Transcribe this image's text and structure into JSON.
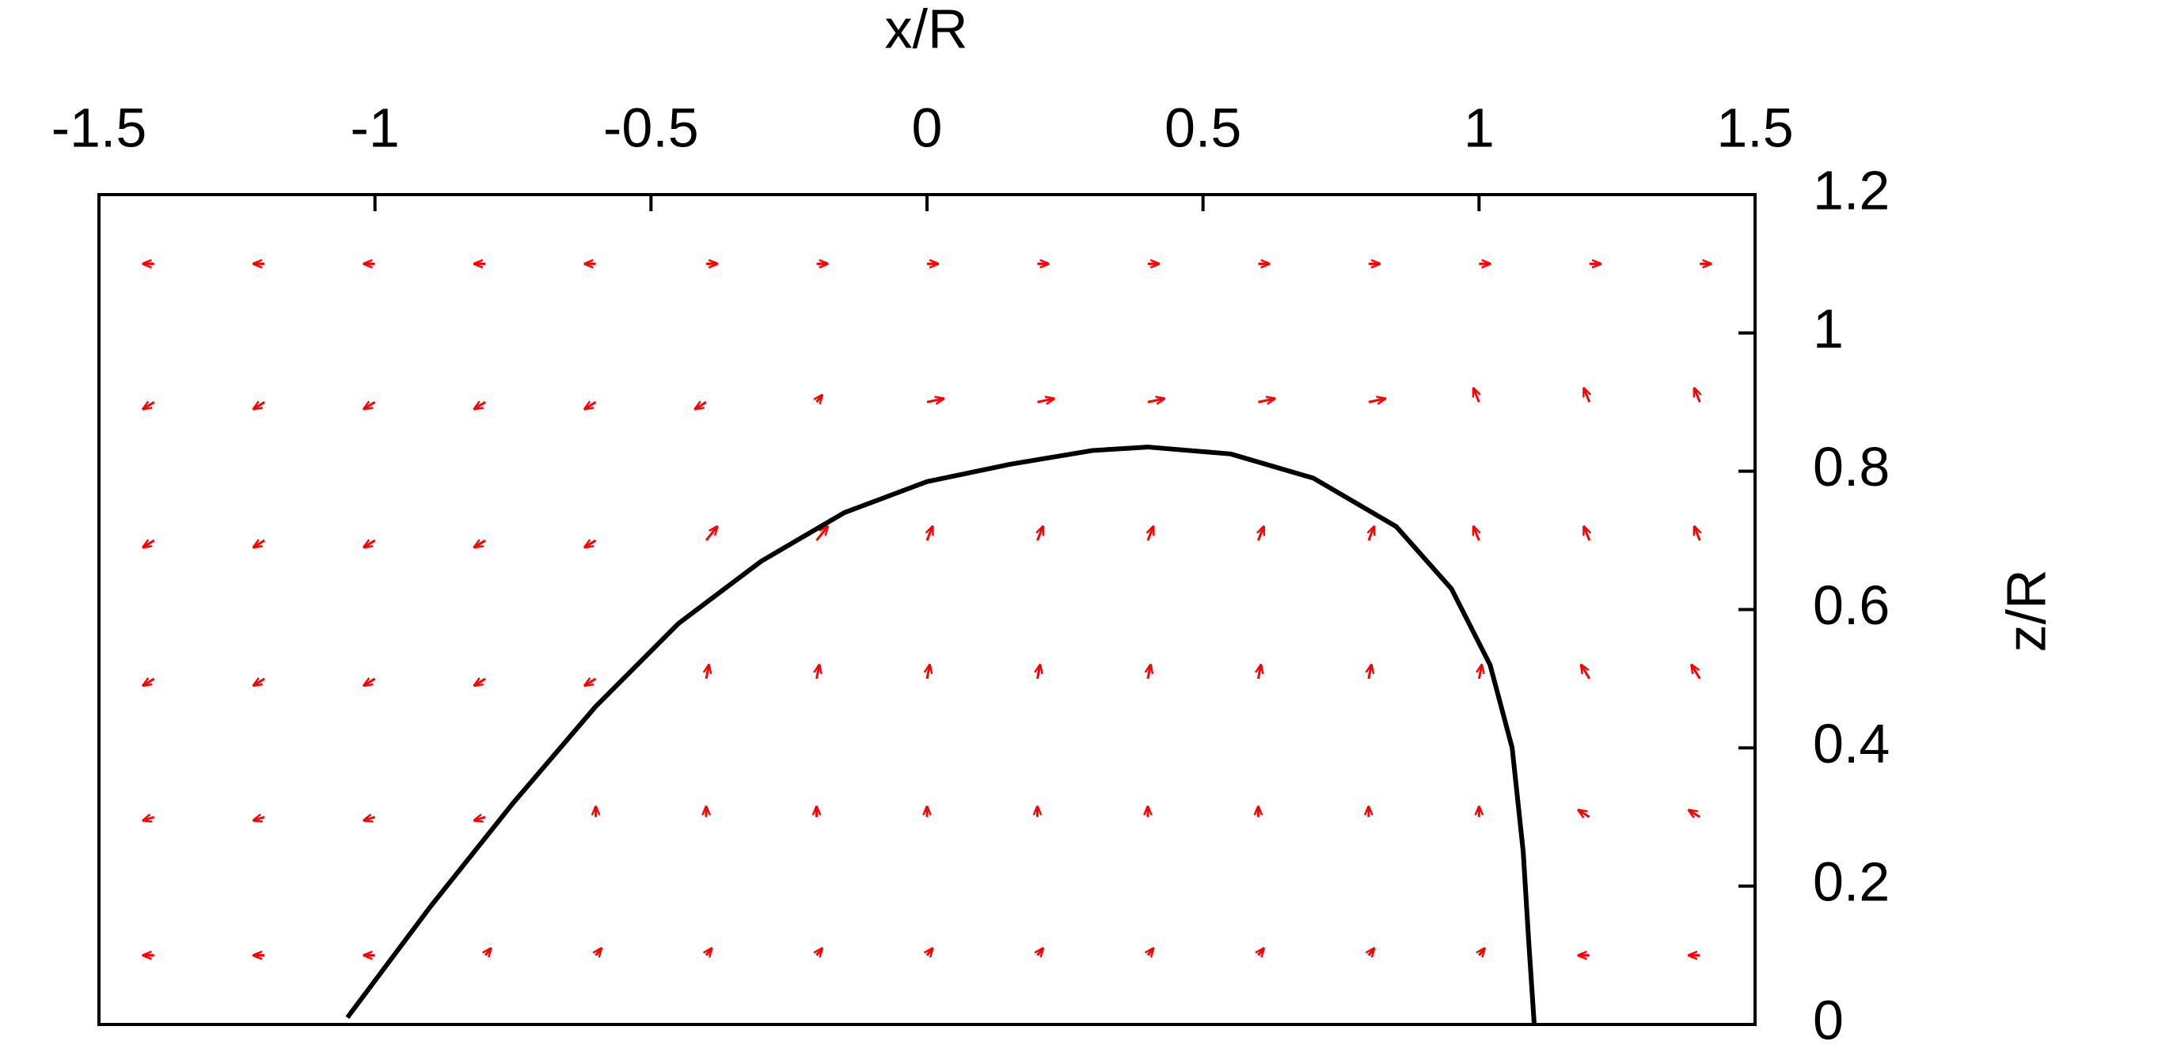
{
  "chart_data": {
    "type": "quiver-line",
    "xlabel": "x/R",
    "ylabel": "z/R",
    "xlim": [
      -1.5,
      1.5
    ],
    "ylim": [
      0,
      1.2
    ],
    "xticks": [
      -1.5,
      -1,
      -0.5,
      0,
      0.5,
      1,
      1.5
    ],
    "yticks": [
      0,
      0.2,
      0.4,
      0.6,
      0.8,
      1,
      1.2
    ],
    "quiver": {
      "color": "#ff0000",
      "x": [
        -1.4,
        -1.2,
        -1.0,
        -0.8,
        -0.6,
        -0.4,
        -0.2,
        0,
        0.2,
        0.4,
        0.6,
        0.8,
        1.0,
        1.2,
        1.4
      ],
      "rows": [
        {
          "y": 0.1,
          "u": [
            -0.02,
            -0.02,
            -0.02,
            0.01,
            0.01,
            0.01,
            0.01,
            0.01,
            0.01,
            0.01,
            0.01,
            0.01,
            0.01,
            -0.02,
            -0.02
          ],
          "v": [
            0,
            0,
            0,
            0.01,
            0.01,
            0.01,
            0.01,
            0.01,
            0.01,
            0.01,
            0.01,
            0.01,
            0.01,
            0,
            0
          ]
        },
        {
          "y": 0.3,
          "u": [
            -0.02,
            -0.02,
            -0.02,
            -0.02,
            0,
            0,
            0,
            0,
            0,
            0,
            0,
            0,
            0,
            -0.02,
            -0.02
          ],
          "v": [
            -0.005,
            -0.005,
            -0.005,
            -0.005,
            0.015,
            0.015,
            0.015,
            0.015,
            0.015,
            0.015,
            0.015,
            0.015,
            0.015,
            0.01,
            0.01
          ]
        },
        {
          "y": 0.5,
          "u": [
            -0.02,
            -0.02,
            -0.02,
            -0.02,
            -0.02,
            0.005,
            0.005,
            0.005,
            0.005,
            0.005,
            0.005,
            0.005,
            0.005,
            -0.015,
            -0.015
          ],
          "v": [
            -0.01,
            -0.01,
            -0.01,
            -0.01,
            -0.01,
            0.02,
            0.02,
            0.02,
            0.02,
            0.02,
            0.02,
            0.02,
            0.02,
            0.02,
            0.02
          ]
        },
        {
          "y": 0.7,
          "u": [
            -0.02,
            -0.02,
            -0.02,
            -0.02,
            -0.02,
            0.02,
            0.02,
            0.01,
            0.01,
            0.01,
            0.01,
            0.01,
            -0.01,
            -0.01,
            -0.01
          ],
          "v": [
            -0.01,
            -0.01,
            -0.01,
            -0.01,
            -0.01,
            0.02,
            0.02,
            0.02,
            0.02,
            0.02,
            0.02,
            0.02,
            0.02,
            0.02,
            0.02
          ]
        },
        {
          "y": 0.9,
          "u": [
            -0.02,
            -0.02,
            -0.02,
            -0.02,
            -0.02,
            -0.02,
            0.01,
            0.03,
            0.03,
            0.03,
            0.03,
            0.03,
            -0.01,
            -0.01,
            -0.01
          ],
          "v": [
            -0.01,
            -0.01,
            -0.01,
            -0.01,
            -0.01,
            -0.01,
            0.01,
            0.005,
            0.005,
            0.005,
            0.005,
            0.005,
            0.02,
            0.02,
            0.02
          ]
        },
        {
          "y": 1.1,
          "u": [
            -0.02,
            -0.02,
            -0.02,
            -0.02,
            -0.02,
            0.02,
            0.02,
            0.02,
            0.02,
            0.02,
            0.02,
            0.02,
            0.02,
            0.02,
            0.02
          ],
          "v": [
            0,
            0,
            0,
            0,
            0,
            0,
            0,
            0,
            0,
            0,
            0,
            0,
            0,
            0,
            0
          ]
        }
      ]
    },
    "curve": {
      "color": "#000000",
      "x": [
        -1.05,
        -0.9,
        -0.75,
        -0.6,
        -0.45,
        -0.3,
        -0.15,
        0,
        0.15,
        0.3,
        0.4,
        0.55,
        0.7,
        0.85,
        0.95,
        1.02,
        1.06,
        1.08,
        1.09,
        1.1
      ],
      "y": [
        0.01,
        0.17,
        0.32,
        0.46,
        0.58,
        0.67,
        0.74,
        0.785,
        0.81,
        0.83,
        0.835,
        0.825,
        0.79,
        0.72,
        0.63,
        0.52,
        0.4,
        0.25,
        0.12,
        0
      ]
    }
  }
}
